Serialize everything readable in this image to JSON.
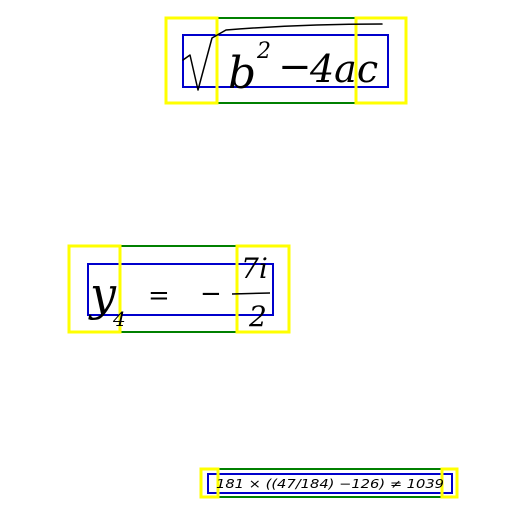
{
  "colors": {
    "background": "#ffffff",
    "yellow_box": "#ffff00",
    "green_box": "#008000",
    "blue_box": "#0000cc",
    "ink": "#000000"
  },
  "formulas": [
    {
      "id": "formula-1",
      "expression": "b²−4ac",
      "parts": {
        "b": "b",
        "sq": "2",
        "minus": "−",
        "rest": "4ac"
      }
    },
    {
      "id": "formula-2",
      "expression": "y₄ = − 7i/2",
      "parts": {
        "y": "y",
        "sub": "4",
        "eq": "=",
        "minus": "−",
        "num": "7i",
        "den": "2"
      }
    },
    {
      "id": "formula-3",
      "expression": "181 × ((47/184) − 126) ≠ 1039",
      "text": "181 × ((47/184) −126) ≠ 1039"
    }
  ]
}
